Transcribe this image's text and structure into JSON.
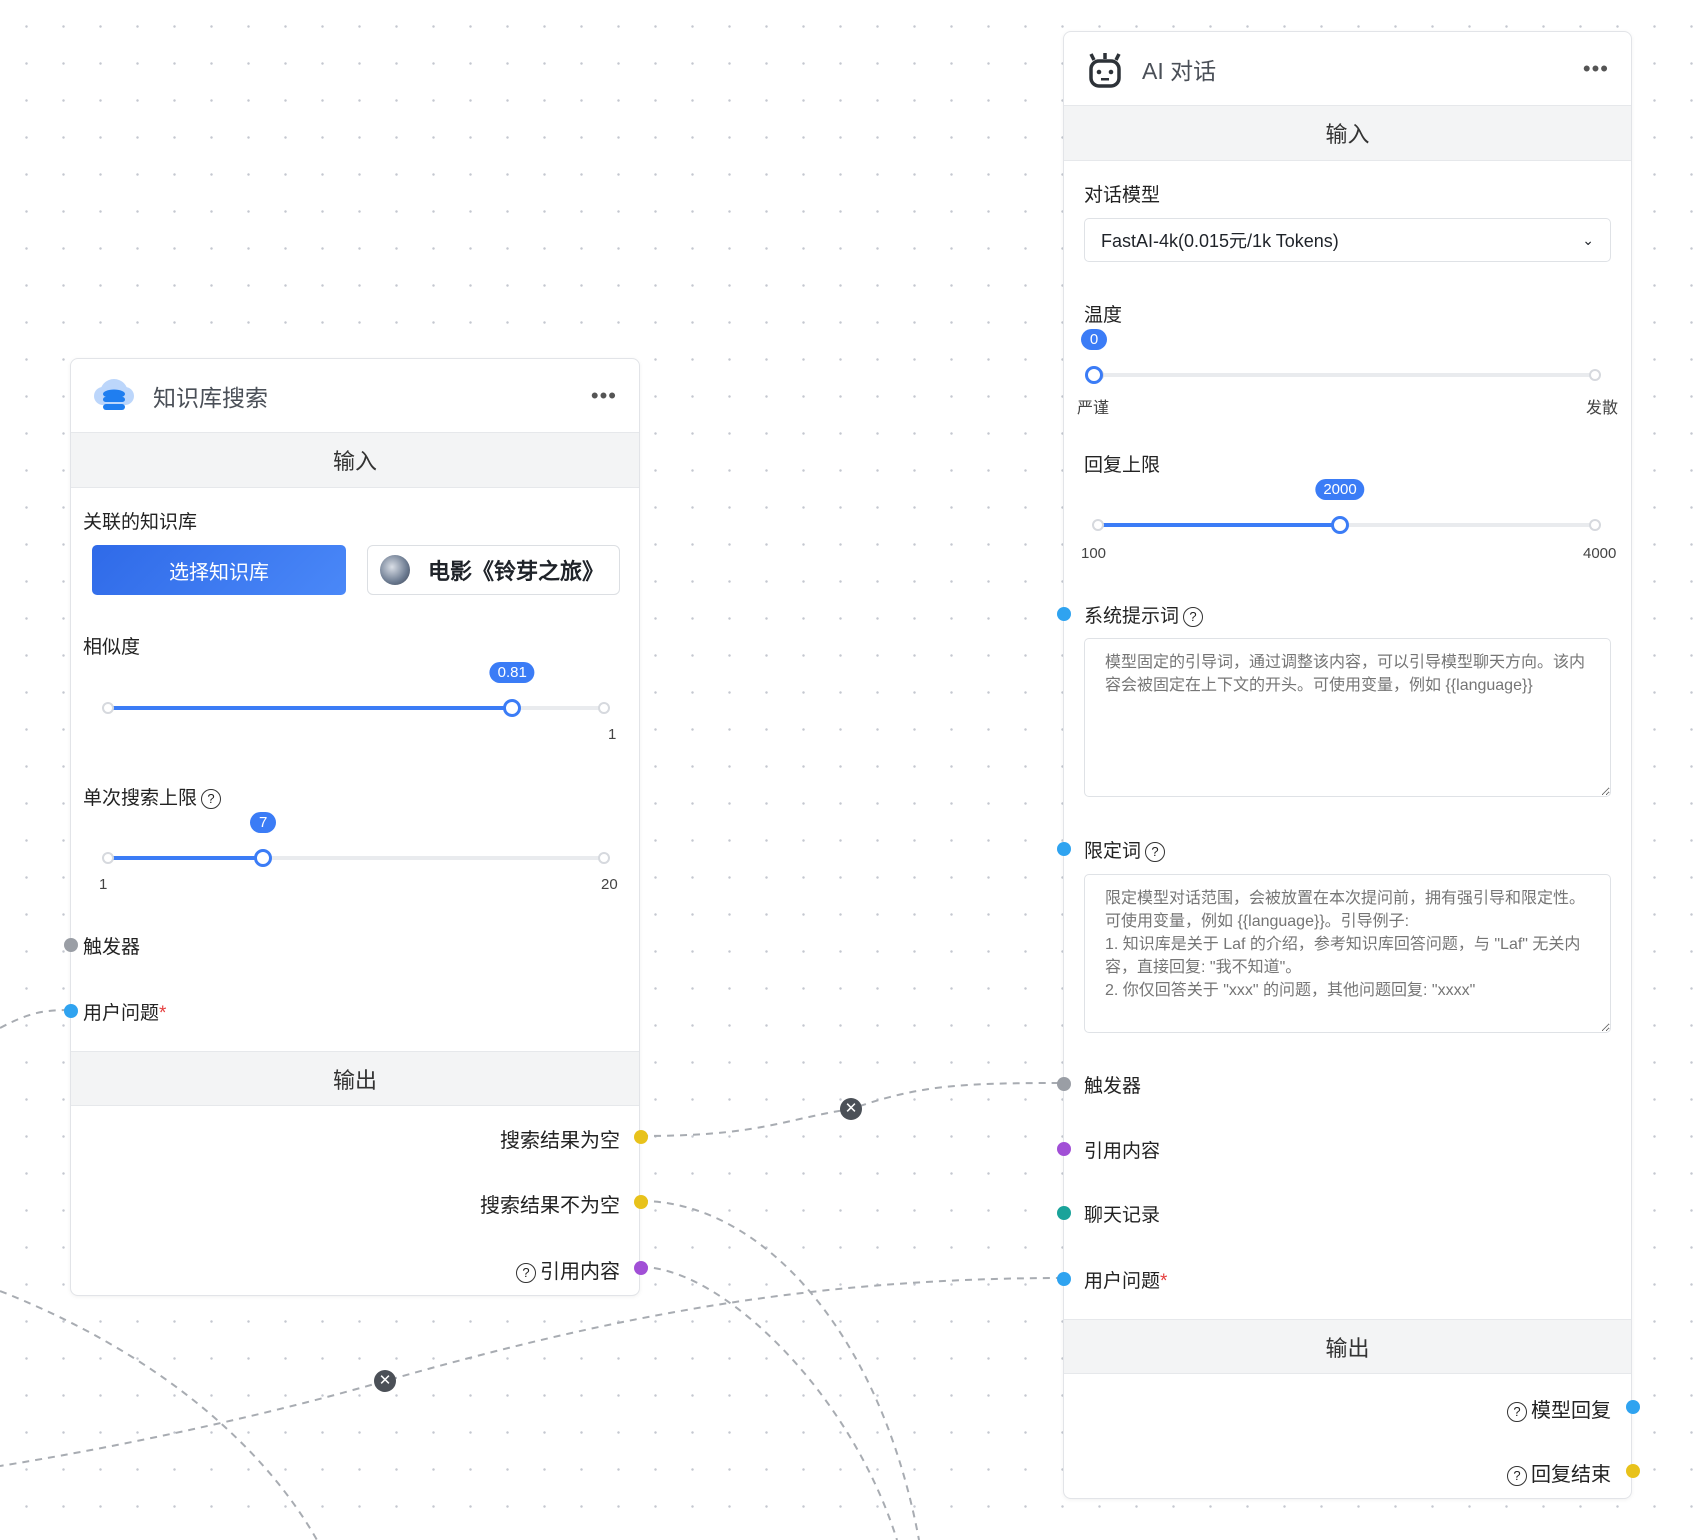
{
  "colors": {
    "accent": "#3b7cf6",
    "blue_handle": "#2fa3f0",
    "gray_handle": "#9a9ea5",
    "yellow_handle": "#e8c21b",
    "purple_handle": "#a14fd6",
    "teal_handle": "#1aa39a"
  },
  "kb_node": {
    "title": "知识库搜索",
    "icon": "database-cloud-icon",
    "more": "•••",
    "input_header": "输入",
    "kb_label": "关联的知识库",
    "select_kb_button": "选择知识库",
    "selected_kb": "电影《铃芽之旅》",
    "similarity": {
      "label": "相似度",
      "value": 0.81,
      "min": 0,
      "max": 1,
      "max_label": "1",
      "value_label": "0.81"
    },
    "limit": {
      "label": "单次搜索上限",
      "value": 7,
      "min": 1,
      "max": 20,
      "min_label": "1",
      "max_label": "20",
      "value_label": "7"
    },
    "trigger": "触发器",
    "user_question": "用户问题",
    "required": "*",
    "output_header": "输出",
    "outputs": [
      "搜索结果为空",
      "搜索结果不为空",
      "引用内容"
    ]
  },
  "ai_node": {
    "title": "AI 对话",
    "icon": "robot-icon",
    "more": "•••",
    "input_header": "输入",
    "model_label": "对话模型",
    "model_value": "FastAI-4k(0.015元/1k Tokens)",
    "temperature": {
      "label": "温度",
      "value": 0,
      "min": 0,
      "max": 10,
      "value_label": "0",
      "min_label": "严谨",
      "max_label": "发散"
    },
    "max_tokens": {
      "label": "回复上限",
      "value": 2000,
      "min": 100,
      "max": 4000,
      "value_label": "2000",
      "min_label": "100",
      "max_label": "4000"
    },
    "system_prompt": {
      "label": "系统提示词",
      "placeholder": "模型固定的引导词，通过调整该内容，可以引导模型聊天方向。该内容会被固定在上下文的开头。可使用变量，例如 {{language}}"
    },
    "limit_prompt": {
      "label": "限定词",
      "placeholder": "限定模型对话范围，会被放置在本次提问前，拥有强引导和限定性。可使用变量，例如 {{language}}。引导例子:\n1. 知识库是关于 Laf 的介绍，参考知识库回答问题，与 \"Laf\" 无关内容，直接回复: \"我不知道\"。\n2. 你仅回答关于 \"xxx\" 的问题，其他问题回复: \"xxxx\""
    },
    "inputs": [
      "触发器",
      "引用内容",
      "聊天记录",
      "用户问题"
    ],
    "required": "*",
    "output_header": "输出",
    "outputs": [
      "模型回复",
      "回复结束"
    ]
  },
  "edge_delete": "✕"
}
